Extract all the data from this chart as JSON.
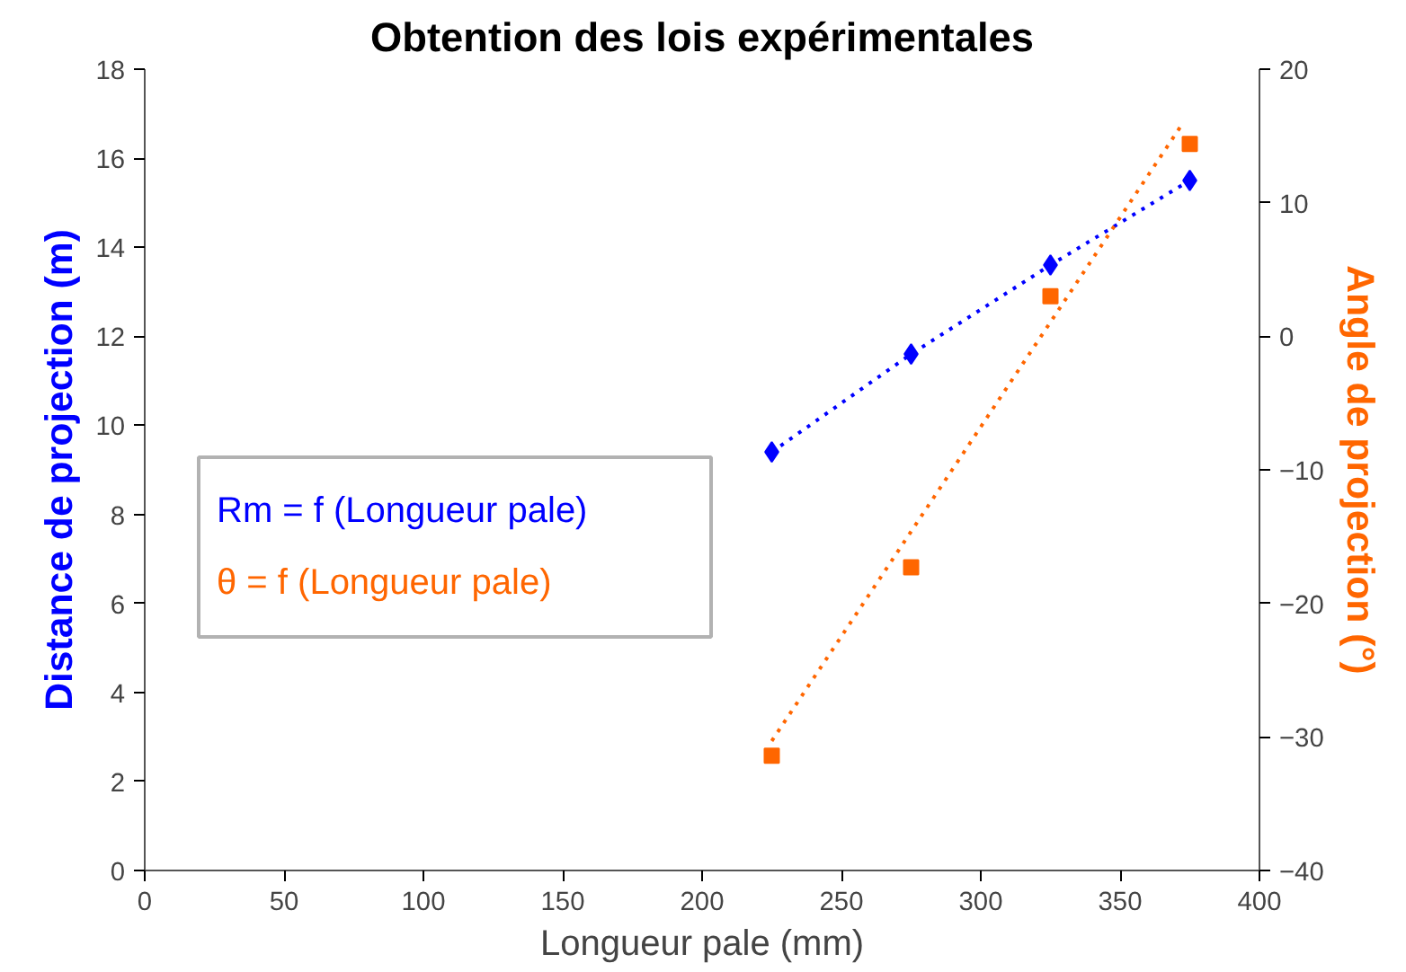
{
  "chart_data": {
    "type": "line",
    "title": "Obtention des lois expérimentales",
    "xlabel": "Longueur pale (mm)",
    "ylabel": "Distance de projection (m)",
    "y2label": "Angle de projection (°)",
    "x": [
      225,
      275,
      325,
      375
    ],
    "series": [
      {
        "name": "Rm = f (Longueur pale)",
        "color": "#0000ff",
        "values": [
          9.4,
          11.6,
          13.6,
          15.5
        ],
        "marker": "diamond",
        "line_style": "dotted"
      },
      {
        "name": "θ = f (Longueur pale)",
        "color": "#ff6600",
        "values": [
          -31.4,
          -17.3,
          3.0,
          14.4
        ],
        "type": "scatter",
        "marker": "square",
        "axis": "y2"
      },
      {
        "color": "#ff6600",
        "x": [
          225,
          372
        ],
        "values": [
          -30.3,
          15.8
        ],
        "marker": "none",
        "line_style": "dotted",
        "axis": "y2"
      }
    ],
    "xlim": [
      0,
      400
    ],
    "xticks": [
      0,
      50,
      100,
      150,
      200,
      250,
      300,
      350,
      400
    ],
    "ylim": [
      0,
      18
    ],
    "yticks": [
      0,
      2,
      4,
      6,
      8,
      10,
      12,
      14,
      16,
      18
    ],
    "y2lim": [
      -40,
      20
    ],
    "y2ticks": [
      -40,
      -30,
      -20,
      -10,
      0,
      10,
      20
    ],
    "grid": false,
    "legend": "left"
  }
}
